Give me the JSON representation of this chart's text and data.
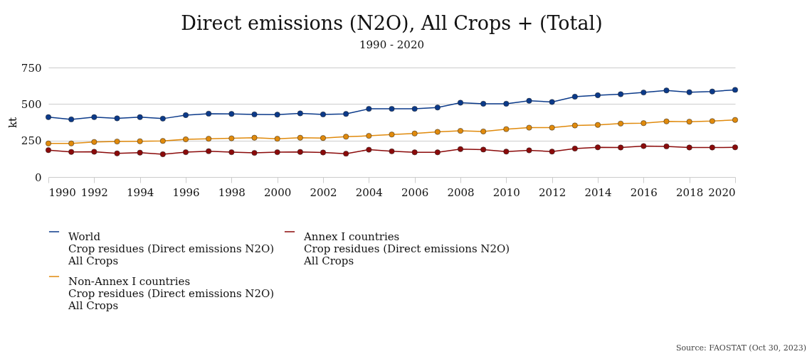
{
  "chart_data": {
    "type": "line",
    "title": "Direct emissions (N2O), All Crops + (Total)",
    "subtitle": "1990 - 2020",
    "ylabel": "kt",
    "x": [
      1990,
      1991,
      1992,
      1993,
      1994,
      1995,
      1996,
      1997,
      1998,
      1999,
      2000,
      2001,
      2002,
      2003,
      2004,
      2005,
      2006,
      2007,
      2008,
      2009,
      2010,
      2011,
      2012,
      2013,
      2014,
      2015,
      2016,
      2017,
      2018,
      2019,
      2020
    ],
    "series": [
      {
        "name": "World\nCrop residues (Direct emissions N2O)\nAll Crops",
        "color": "#0b3a8a",
        "values": [
          410,
          395,
          410,
          402,
          410,
          400,
          424,
          434,
          432,
          429,
          427,
          436,
          429,
          432,
          467,
          467,
          467,
          476,
          509,
          502,
          502,
          522,
          514,
          550,
          560,
          567,
          579,
          593,
          581,
          586,
          597
        ]
      },
      {
        "name": "Annex I countries\nCrop residues (Direct emissions N2O)\nAll Crops",
        "color": "#8b0a0a",
        "values": [
          184,
          172,
          173,
          162,
          167,
          156,
          170,
          177,
          170,
          165,
          170,
          172,
          168,
          160,
          187,
          176,
          169,
          169,
          191,
          188,
          174,
          183,
          174,
          195,
          203,
          202,
          212,
          210,
          202,
          202,
          203
        ]
      },
      {
        "name": "Non-Annex I countries\nCrop residues (Direct emissions N2O)\nAll Crops",
        "color": "#e08a0c",
        "values": [
          230,
          230,
          240,
          243,
          245,
          247,
          258,
          262,
          265,
          269,
          262,
          269,
          267,
          276,
          282,
          291,
          298,
          309,
          316,
          312,
          328,
          338,
          338,
          353,
          357,
          366,
          369,
          381,
          379,
          383,
          391
        ]
      }
    ],
    "xlim": [
      1990,
      2020
    ],
    "xticks": [
      1990,
      1992,
      1994,
      1996,
      1998,
      2000,
      2002,
      2004,
      2006,
      2008,
      2010,
      2012,
      2014,
      2016,
      2018,
      2020
    ],
    "ylim": [
      0,
      750
    ],
    "yticks": [
      0,
      250,
      500,
      750
    ],
    "grid": "y",
    "legend": "bottom",
    "marker": "circle",
    "line_style": "solid",
    "annotations": [
      "Source: FAOSTAT (Oct 30, 2023)"
    ]
  }
}
